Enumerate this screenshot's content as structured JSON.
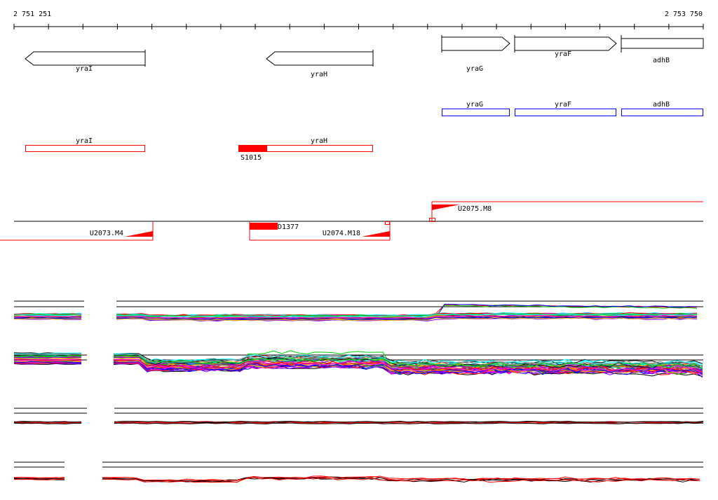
{
  "coordinates": {
    "start": "2 751 251",
    "end": "2 753 750"
  },
  "genes": [
    {
      "name": "yraI",
      "strand": "-"
    },
    {
      "name": "yraH",
      "strand": "-"
    },
    {
      "name": "yraG",
      "strand": "+"
    },
    {
      "name": "yraF",
      "strand": "+"
    },
    {
      "name": "adhB",
      "strand": "none"
    }
  ],
  "operons_blue": [
    "yraG",
    "yraF",
    "adhB"
  ],
  "operons_red": [
    "yraI",
    "yraH"
  ],
  "site_label": "S1015",
  "promoters": {
    "u2073": "U2073.M4",
    "d1377": "D1377",
    "u2074": "U2074.M18",
    "u2075": "U2075.M8"
  },
  "colors": {
    "red": "#ff0000",
    "blue": "#0000ff",
    "profile_palette": [
      "#ff0000",
      "#00cc00",
      "#0000ff",
      "#ff00ff",
      "#00ffff",
      "#ffcc00",
      "#ff8800",
      "#8800ff",
      "#000000",
      "#888888",
      "#00aa88",
      "#cc0066"
    ]
  }
}
